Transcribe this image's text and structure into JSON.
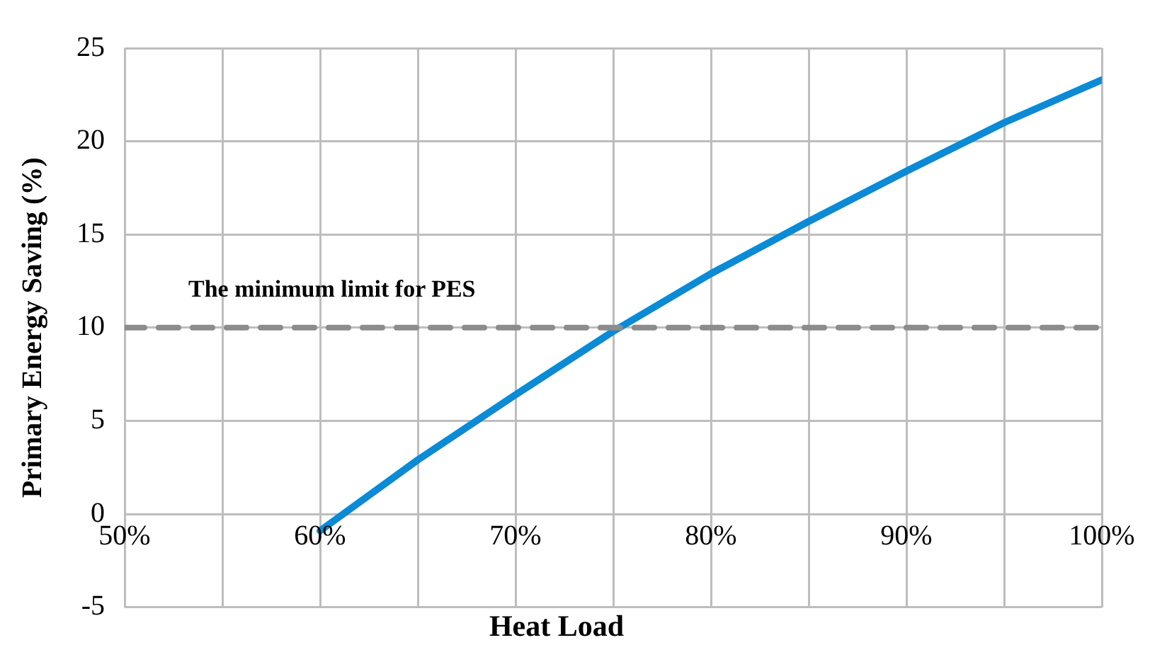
{
  "chart_data": {
    "type": "line",
    "xlabel": "Heat Load",
    "ylabel": "Primary Energy Saving (%)",
    "x": [
      60,
      65,
      70,
      75,
      80,
      85,
      90,
      95,
      100
    ],
    "series": [
      {
        "color": "#0b8ad6",
        "values": [
          -0.9,
          2.9,
          6.4,
          9.8,
          12.9,
          15.7,
          18.4,
          21,
          23.3
        ]
      }
    ],
    "xlim": [
      50,
      100
    ],
    "xticks": [
      {
        "value": 50,
        "label": "50%"
      },
      {
        "value": 55,
        "label": null
      },
      {
        "value": 60,
        "label": "60%"
      },
      {
        "value": 65,
        "label": null
      },
      {
        "value": 70,
        "label": "70%"
      },
      {
        "value": 75,
        "label": null
      },
      {
        "value": 80,
        "label": "80%"
      },
      {
        "value": 85,
        "label": null
      },
      {
        "value": 90,
        "label": "90%"
      },
      {
        "value": 95,
        "label": null
      },
      {
        "value": 100,
        "label": "100%"
      }
    ],
    "ylim": [
      -5,
      25
    ],
    "yticks": [
      -5,
      0,
      5,
      10,
      15,
      20,
      25
    ],
    "ref_lines": [
      {
        "axis": "y",
        "value": 10,
        "label": "The minimum limit for PES",
        "color": "#8c8c8c",
        "line_style": "dashed"
      }
    ],
    "grid": true,
    "legend": false,
    "marker": "none",
    "line_style": "solid"
  }
}
